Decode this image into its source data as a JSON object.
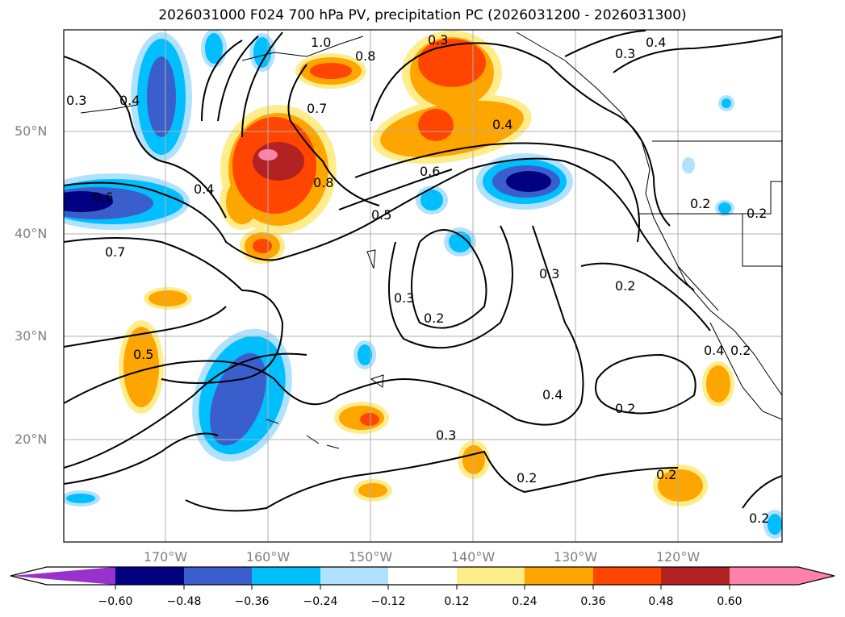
{
  "title": "2026031000 F024 700 hPa PV, precipitation PC (2026031200 - 2026031300)",
  "lat_labels": [
    "50°N",
    "40°N",
    "30°N",
    "20°N"
  ],
  "lon_labels": [
    "170°W",
    "160°W",
    "150°W",
    "140°W",
    "130°W",
    "120°W"
  ],
  "colorbar": {
    "ticks": [
      "−0.60",
      "−0.48",
      "−0.36",
      "−0.24",
      "−0.12",
      "0.12",
      "0.24",
      "0.36",
      "0.48",
      "0.60"
    ],
    "colors": [
      "#9932CC",
      "#000080",
      "#3A5FCD",
      "#00BFFF",
      "#B0E2FF",
      "#FFFFFF",
      "#FFEC8B",
      "#FFA500",
      "#FF4500",
      "#B22222",
      "#FF82AB"
    ]
  },
  "contour_labels": [
    "1.0",
    "0.8",
    "0.3",
    "0.4",
    "0.3",
    "0.4",
    "0.3",
    "0.7",
    "0.4",
    "0.8",
    "0.6",
    "0.6",
    "0.4",
    "0.5",
    "0.7",
    "0.3",
    "0.2",
    "0.3",
    "0.2",
    "0.2",
    "0.2",
    "0.5",
    "0.4",
    "0.2",
    "0.3",
    "0.4",
    "0.2",
    "0.2",
    "0.2",
    "0.2"
  ]
}
